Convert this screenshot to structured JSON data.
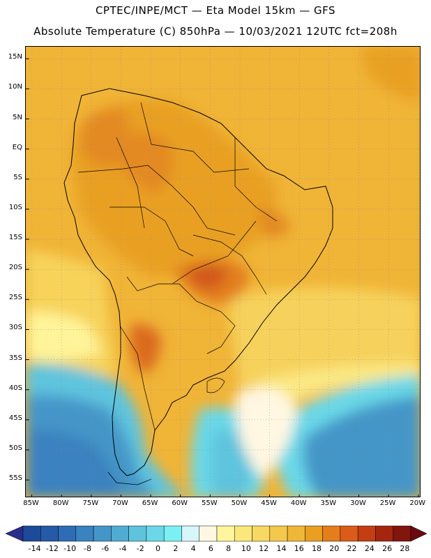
{
  "title": {
    "line1": "CPTEC/INPE/MCT —  Eta Model 15km — GFS",
    "line2": "Absolute Temperature (C) 850hPa — 10/03/2021 12UTC fct=208h"
  },
  "map": {
    "region": "South America",
    "lat_range": [
      -58,
      17
    ],
    "lon_range": [
      -86,
      -19.5
    ],
    "lat_labels": [
      {
        "text": "15N",
        "lat": 15
      },
      {
        "text": "10N",
        "lat": 10
      },
      {
        "text": "5N",
        "lat": 5
      },
      {
        "text": "EQ",
        "lat": 0
      },
      {
        "text": "5S",
        "lat": -5
      },
      {
        "text": "10S",
        "lat": -10
      },
      {
        "text": "15S",
        "lat": -15
      },
      {
        "text": "20S",
        "lat": -20
      },
      {
        "text": "25S",
        "lat": -25
      },
      {
        "text": "30S",
        "lat": -30
      },
      {
        "text": "35S",
        "lat": -35
      },
      {
        "text": "40S",
        "lat": -40
      },
      {
        "text": "45S",
        "lat": -45
      },
      {
        "text": "50S",
        "lat": -50
      },
      {
        "text": "55S",
        "lat": -55
      }
    ],
    "lon_labels": [
      {
        "text": "85W",
        "lon": -85
      },
      {
        "text": "80W",
        "lon": -80
      },
      {
        "text": "75W",
        "lon": -75
      },
      {
        "text": "70W",
        "lon": -70
      },
      {
        "text": "65W",
        "lon": -65
      },
      {
        "text": "60W",
        "lon": -60
      },
      {
        "text": "55W",
        "lon": -55
      },
      {
        "text": "50W",
        "lon": -50
      },
      {
        "text": "45W",
        "lon": -45
      },
      {
        "text": "40W",
        "lon": -40
      },
      {
        "text": "35W",
        "lon": -35
      },
      {
        "text": "30W",
        "lon": -30
      },
      {
        "text": "25W",
        "lon": -25
      },
      {
        "text": "20W",
        "lon": -20
      }
    ]
  },
  "colorbar": {
    "unit": "C",
    "labels": [
      "-14",
      "-12",
      "-10",
      "-8",
      "-6",
      "-4",
      "-2",
      "0",
      "2",
      "4",
      "6",
      "8",
      "10",
      "12",
      "14",
      "16",
      "18",
      "20",
      "22",
      "24",
      "26",
      "28"
    ],
    "under_color": "#2a2d8c",
    "over_color": "#6a0a10",
    "colors": [
      "#1d4a9a",
      "#255aa8",
      "#2e6cb5",
      "#3a82c0",
      "#4596c8",
      "#50acd2",
      "#5ec4de",
      "#6ad8e8",
      "#7af0f4",
      "#d6f6fa",
      "#fff7e2",
      "#fff59c",
      "#fbe87a",
      "#f7d862",
      "#f3c84c",
      "#efb738",
      "#e9a020",
      "#e37e1a",
      "#db5c18",
      "#c43e12",
      "#a5260e",
      "#80160e"
    ]
  }
}
